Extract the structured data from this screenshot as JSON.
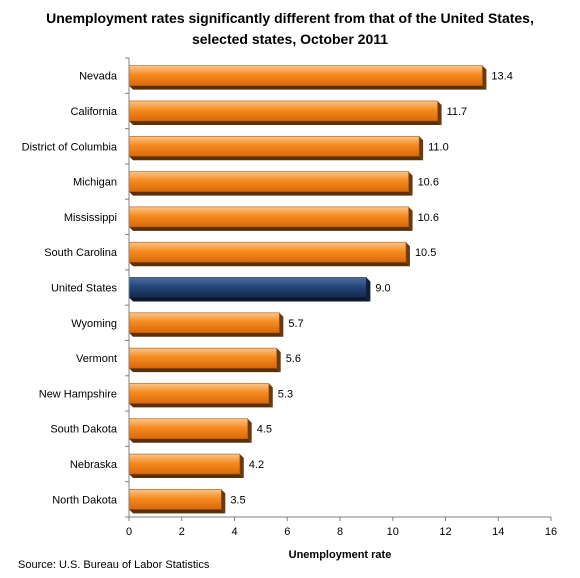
{
  "chart_data": {
    "type": "bar",
    "orientation": "horizontal",
    "title_lines": [
      "Unemployment rates significantly different from that of the United States,",
      "selected states, October 2011"
    ],
    "xlabel": "Unemployment rate",
    "ylabel": "",
    "xlim": [
      0,
      16
    ],
    "xticks": [
      0,
      2,
      4,
      6,
      8,
      10,
      12,
      14,
      16
    ],
    "grid": false,
    "categories": [
      "Nevada",
      "California",
      "District of Columbia",
      "Michigan",
      "Mississippi",
      "South Carolina",
      "United States",
      "Wyoming",
      "Vermont",
      "New Hampshire",
      "South Dakota",
      "Nebraska",
      "North Dakota"
    ],
    "values": [
      13.4,
      11.7,
      11.0,
      10.6,
      10.6,
      10.5,
      9.0,
      5.7,
      5.6,
      5.3,
      4.5,
      4.2,
      3.5
    ],
    "value_labels": [
      "13.4",
      "11.7",
      "11.0",
      "10.6",
      "10.6",
      "10.5",
      "9.0",
      "5.7",
      "5.6",
      "5.3",
      "4.5",
      "4.2",
      "3.5"
    ],
    "highlight_category": "United States",
    "colors": {
      "bar": "#f68b1f",
      "highlight": "#1f3d6b"
    }
  },
  "footer": {
    "source": "Source: U.S. Bureau of Labor Statistics"
  }
}
